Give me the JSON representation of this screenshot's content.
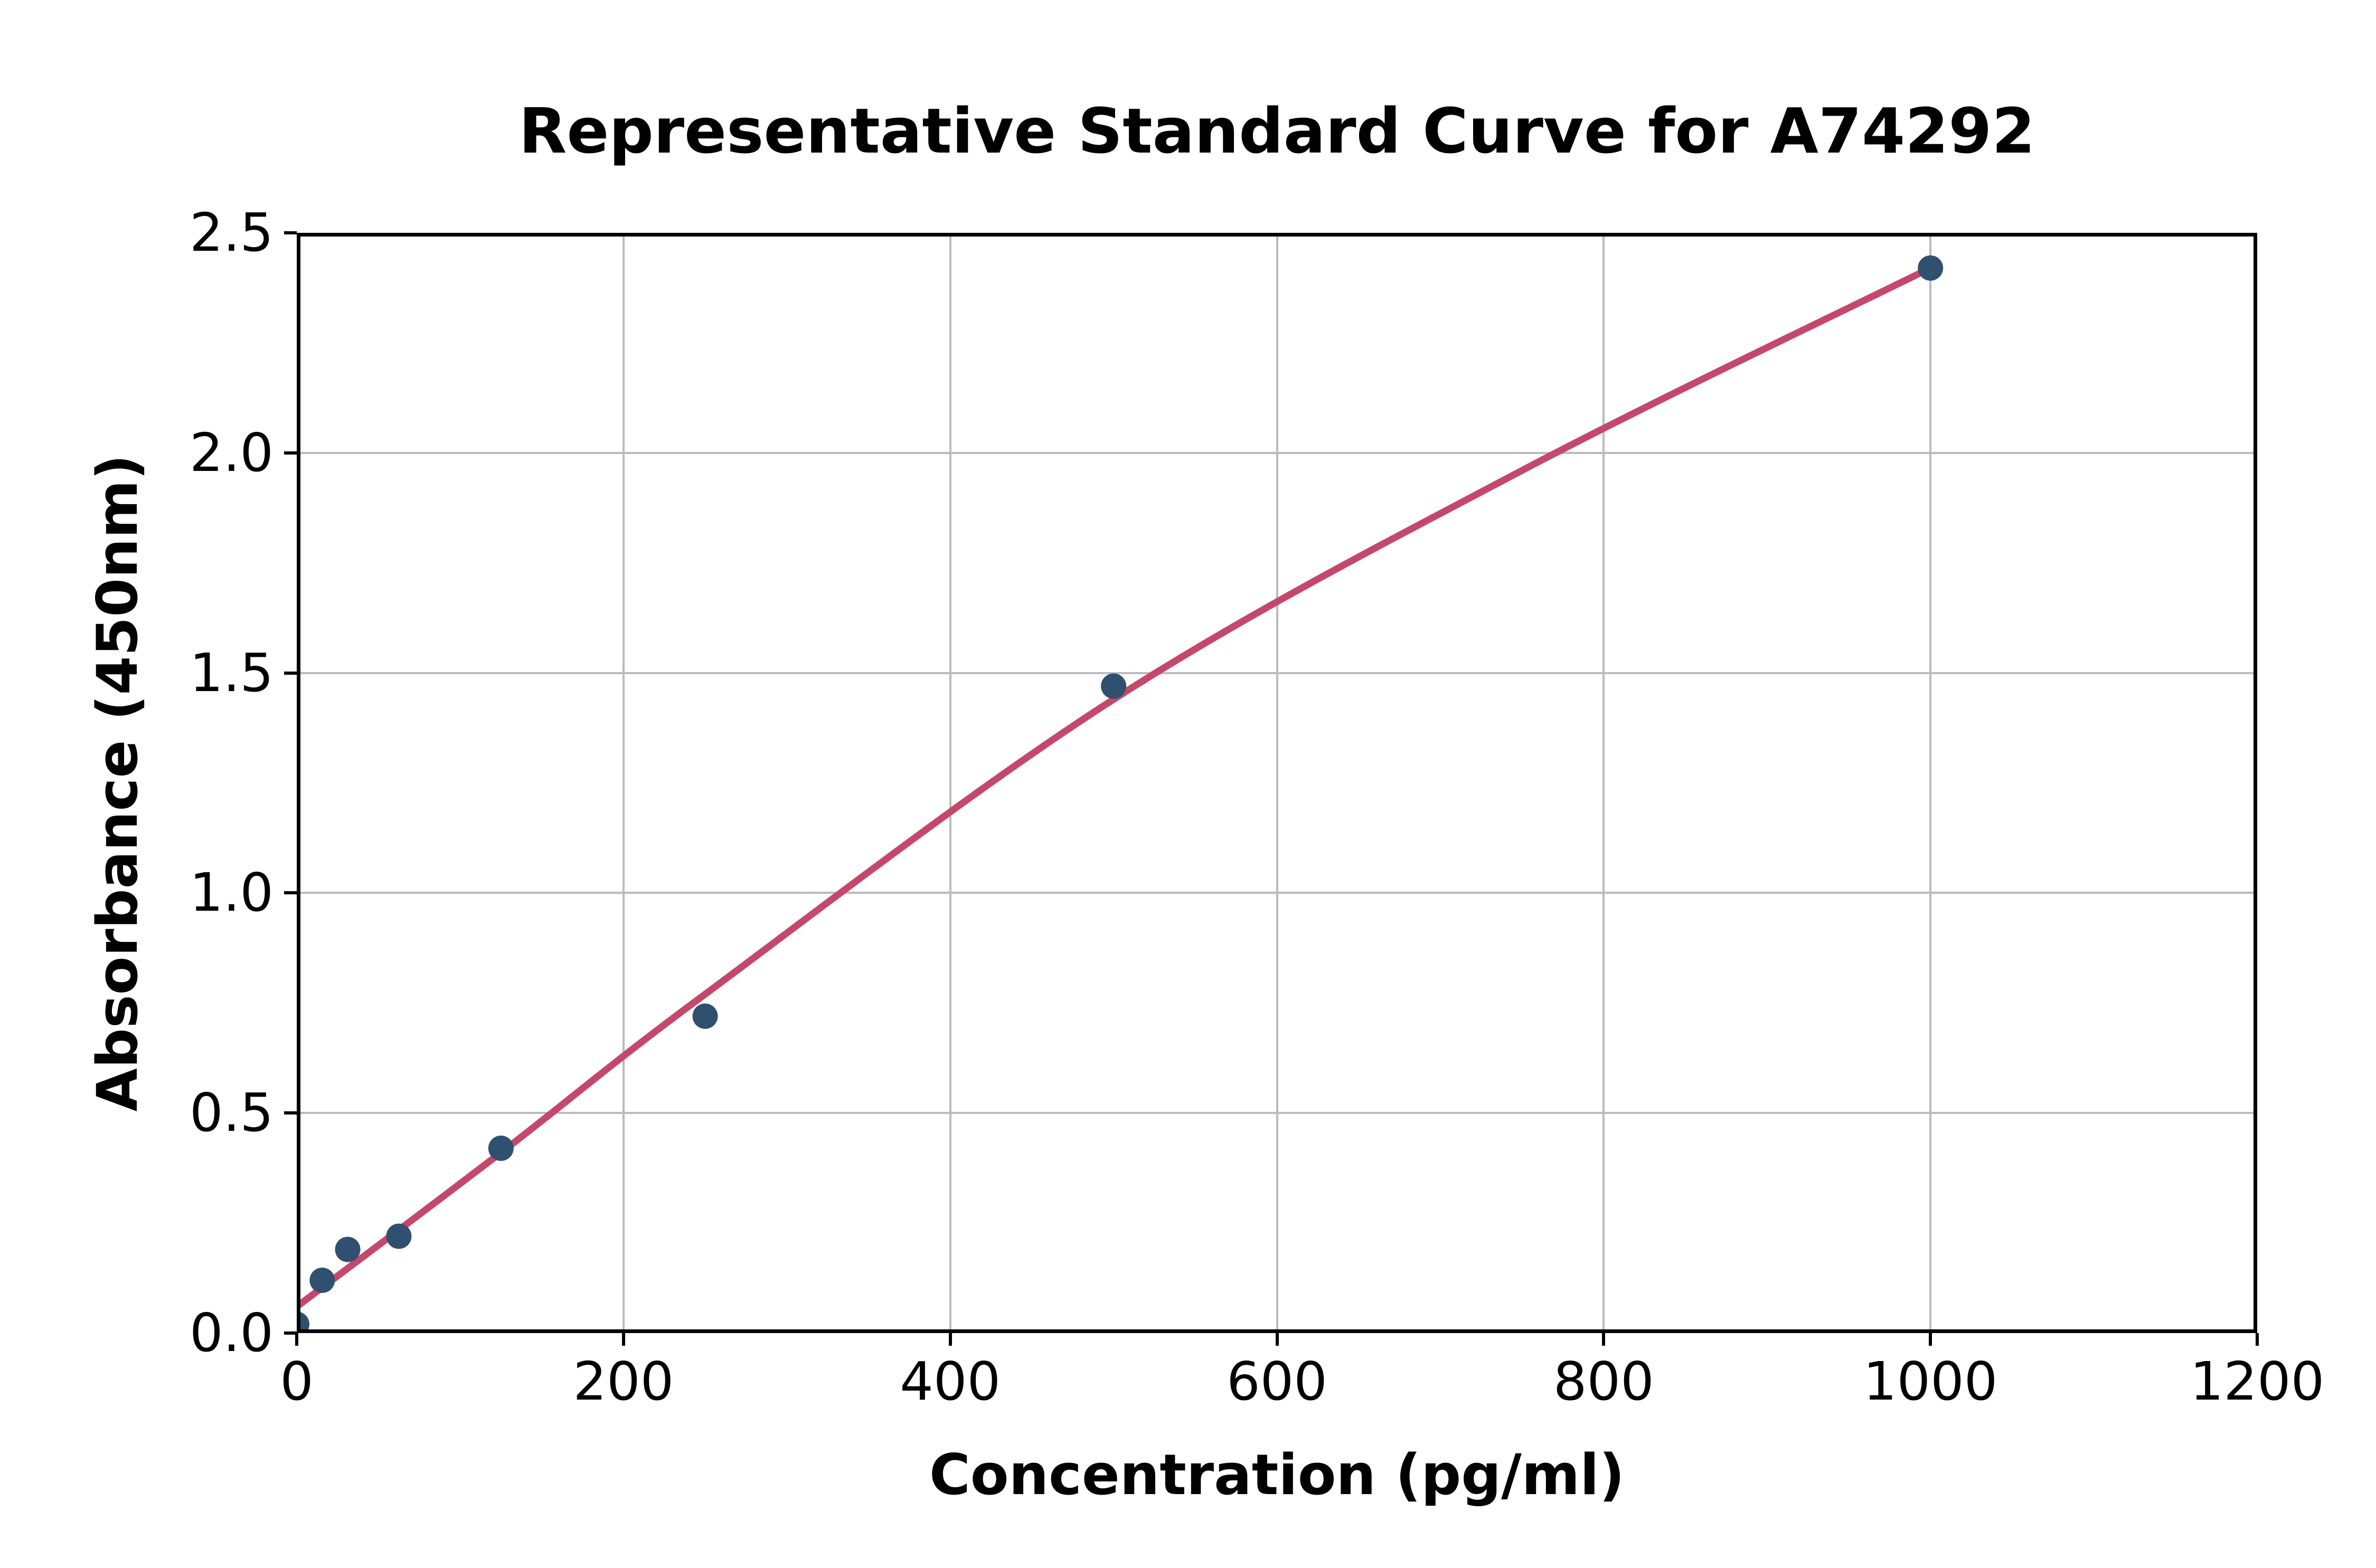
{
  "chart_data": {
    "type": "scatter",
    "title": "Representative Standard Curve for A74292",
    "xlabel": "Concentration (pg/ml)",
    "ylabel": "Absorbance (450nm)",
    "xlim": [
      0,
      1200
    ],
    "ylim": [
      0,
      2.5
    ],
    "x_tick_values": [
      0,
      200,
      400,
      600,
      800,
      1000,
      1200
    ],
    "x_tick_labels": [
      "0",
      "200",
      "400",
      "600",
      "800",
      "1000",
      "1200"
    ],
    "y_tick_values": [
      0,
      0.5,
      1.0,
      1.5,
      2.0,
      2.5
    ],
    "y_tick_labels": [
      "0.0",
      "0.5",
      "1.0",
      "1.5",
      "2.0",
      "2.5"
    ],
    "grid": true,
    "legend_position": "none",
    "series": [
      {
        "name": "standard-points",
        "type": "scatter",
        "points": [
          [
            0,
            0.02
          ],
          [
            15.6,
            0.12
          ],
          [
            31.2,
            0.19
          ],
          [
            62.5,
            0.22
          ],
          [
            125,
            0.42
          ],
          [
            250,
            0.72
          ],
          [
            500,
            1.47
          ],
          [
            1000,
            2.42
          ]
        ]
      },
      {
        "name": "fitted-curve",
        "type": "line",
        "points": [
          [
            0,
            0.06
          ],
          [
            125,
            0.41
          ],
          [
            250,
            0.77
          ],
          [
            500,
            1.44
          ],
          [
            750,
            1.96
          ],
          [
            1000,
            2.42
          ]
        ]
      }
    ],
    "colors": {
      "point": "#2f506f",
      "curve": "#c5486c",
      "grid": "#bbbbbb",
      "axis": "#000000",
      "background": "#ffffff",
      "text": "#000000"
    }
  }
}
